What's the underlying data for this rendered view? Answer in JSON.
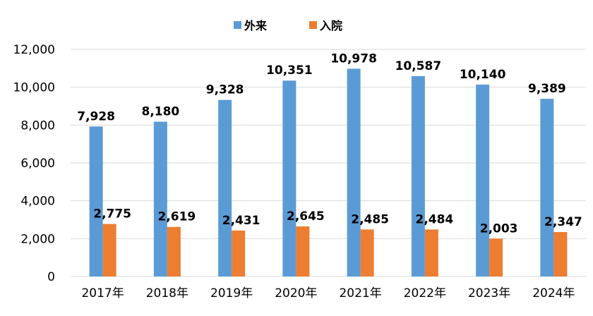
{
  "chart_data": {
    "type": "bar",
    "categories": [
      "2017年",
      "2018年",
      "2019年",
      "2020年",
      "2021年",
      "2022年",
      "2023年",
      "2024年"
    ],
    "series": [
      {
        "name": "外来",
        "color": "#5b9bd5",
        "values": [
          7928,
          8180,
          9328,
          10351,
          10978,
          10587,
          10140,
          9389
        ]
      },
      {
        "name": "入院",
        "color": "#ed7d31",
        "values": [
          2775,
          2619,
          2431,
          2645,
          2485,
          2484,
          2003,
          2347
        ]
      }
    ],
    "data_labels": [
      [
        "7,928",
        "8,180",
        "9,328",
        "10,351",
        "10,978",
        "10,587",
        "10,140",
        "9,389"
      ],
      [
        "2,775",
        "2,619",
        "2,431",
        "2,645",
        "2,485",
        "2,484",
        "2,003",
        "2,347"
      ]
    ],
    "y_ticks": [
      0,
      2000,
      4000,
      6000,
      8000,
      10000,
      12000
    ],
    "y_tick_labels": [
      "0",
      "2,000",
      "4,000",
      "6,000",
      "8,000",
      "10,000",
      "12,000"
    ],
    "ylim": [
      0,
      12000
    ],
    "grid": true,
    "legend_position": "top-center",
    "title": "",
    "xlabel": "",
    "ylabel": "",
    "gridline_color": "#d9d9d9"
  }
}
